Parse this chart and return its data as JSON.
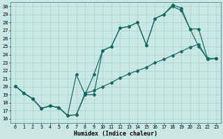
{
  "xlabel": "Humidex (Indice chaleur)",
  "xlim": [
    -0.5,
    23.5
  ],
  "ylim": [
    15.5,
    30.5
  ],
  "xticks": [
    0,
    1,
    2,
    3,
    4,
    5,
    6,
    7,
    8,
    9,
    10,
    11,
    12,
    13,
    14,
    15,
    16,
    17,
    18,
    19,
    20,
    21,
    22,
    23
  ],
  "yticks": [
    16,
    17,
    18,
    19,
    20,
    21,
    22,
    23,
    24,
    25,
    26,
    27,
    28,
    29,
    30
  ],
  "bg_color": "#c8e8e4",
  "line_color": "#1a6660",
  "grid_color": "#a8d0cc",
  "curve1_x": [
    0,
    1,
    2,
    3,
    4,
    5,
    6,
    7,
    8,
    9,
    10,
    11,
    12,
    13,
    14,
    15,
    16,
    17,
    18,
    19,
    20,
    21,
    22,
    23
  ],
  "curve1_y": [
    20.1,
    19.2,
    18.5,
    17.3,
    17.6,
    17.4,
    16.4,
    16.5,
    19.0,
    21.5,
    24.5,
    25.0,
    27.3,
    27.5,
    28.0,
    25.2,
    28.5,
    29.0,
    30.0,
    29.5,
    27.2,
    25.0,
    23.5,
    23.5
  ],
  "curve2_x": [
    0,
    1,
    2,
    3,
    4,
    5,
    6,
    7,
    8,
    9,
    10,
    11,
    12,
    13,
    14,
    15,
    16,
    17,
    18,
    19,
    20,
    21,
    22,
    23
  ],
  "curve2_y": [
    20.1,
    19.2,
    18.5,
    17.3,
    17.6,
    17.4,
    16.4,
    21.5,
    19.0,
    19.0,
    24.5,
    25.0,
    27.3,
    27.5,
    28.0,
    25.2,
    28.5,
    29.0,
    30.2,
    29.8,
    27.2,
    27.2,
    23.5,
    23.5
  ],
  "curve3_x": [
    0,
    1,
    2,
    3,
    4,
    5,
    6,
    7,
    8,
    9,
    10,
    11,
    12,
    13,
    14,
    15,
    16,
    17,
    18,
    19,
    20,
    21,
    22,
    23
  ],
  "curve3_y": [
    20.1,
    19.2,
    18.5,
    17.3,
    17.6,
    17.4,
    16.4,
    16.5,
    19.2,
    19.5,
    20.0,
    20.5,
    21.1,
    21.6,
    22.0,
    22.4,
    23.0,
    23.4,
    23.9,
    24.4,
    24.9,
    25.3,
    23.4,
    23.5
  ]
}
